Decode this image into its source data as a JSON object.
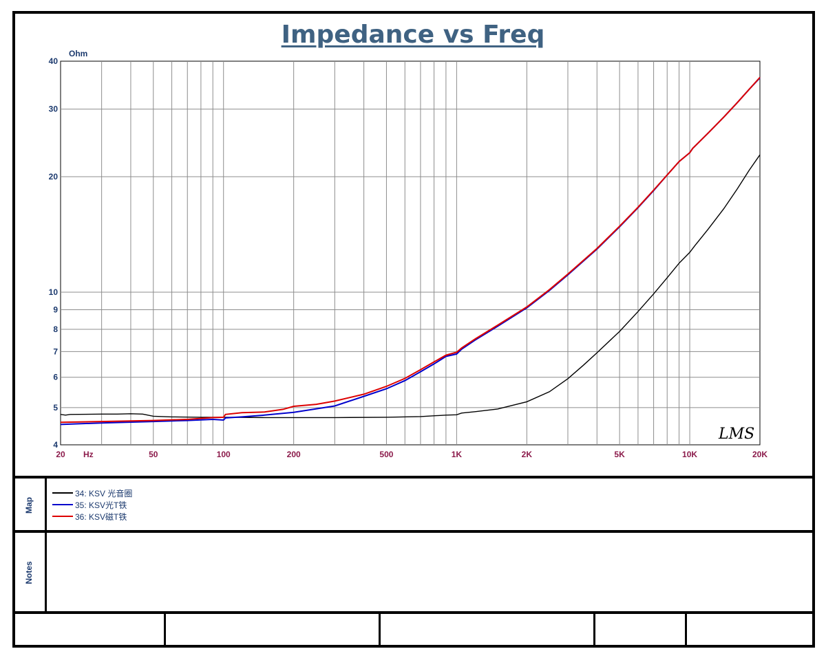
{
  "chart_data": {
    "type": "line",
    "title": "Impedance vs Freq",
    "ylabel": "Ohm",
    "xlabel": "Hz",
    "x_scale": "log",
    "y_scale": "log",
    "xlim": [
      20,
      20000
    ],
    "ylim": [
      4,
      40
    ],
    "grid": true,
    "x_ticks": [
      {
        "value": 20,
        "label": "20"
      },
      {
        "value": 50,
        "label": "50"
      },
      {
        "value": 100,
        "label": "100"
      },
      {
        "value": 200,
        "label": "200"
      },
      {
        "value": 500,
        "label": "500"
      },
      {
        "value": 1000,
        "label": "1K"
      },
      {
        "value": 2000,
        "label": "2K"
      },
      {
        "value": 5000,
        "label": "5K"
      },
      {
        "value": 10000,
        "label": "10K"
      },
      {
        "value": 20000,
        "label": "20K"
      }
    ],
    "y_ticks": [
      {
        "value": 4,
        "label": "4"
      },
      {
        "value": 5,
        "label": "5"
      },
      {
        "value": 6,
        "label": "6"
      },
      {
        "value": 7,
        "label": "7"
      },
      {
        "value": 8,
        "label": "8"
      },
      {
        "value": 9,
        "label": "9"
      },
      {
        "value": 10,
        "label": "10"
      },
      {
        "value": 20,
        "label": "20"
      },
      {
        "value": 30,
        "label": "30"
      },
      {
        "value": 40,
        "label": "40"
      }
    ],
    "x_unit_label": "Hz",
    "watermark": "LMS",
    "series": [
      {
        "name": "34: KSV 光音圈",
        "color": "#000000",
        "points": [
          [
            20,
            4.8
          ],
          [
            21,
            4.78
          ],
          [
            22,
            4.8
          ],
          [
            30,
            4.81
          ],
          [
            35,
            4.81
          ],
          [
            40,
            4.82
          ],
          [
            45,
            4.81
          ],
          [
            50,
            4.75
          ],
          [
            60,
            4.73
          ],
          [
            80,
            4.72
          ],
          [
            100,
            4.72
          ],
          [
            150,
            4.71
          ],
          [
            200,
            4.71
          ],
          [
            300,
            4.71
          ],
          [
            500,
            4.72
          ],
          [
            700,
            4.74
          ],
          [
            900,
            4.78
          ],
          [
            1000,
            4.79
          ],
          [
            1050,
            4.84
          ],
          [
            1200,
            4.88
          ],
          [
            1500,
            4.96
          ],
          [
            2000,
            5.18
          ],
          [
            2500,
            5.5
          ],
          [
            3000,
            5.95
          ],
          [
            3500,
            6.45
          ],
          [
            4000,
            6.95
          ],
          [
            5000,
            7.9
          ],
          [
            6000,
            8.9
          ],
          [
            7000,
            9.9
          ],
          [
            8000,
            10.9
          ],
          [
            9000,
            11.9
          ],
          [
            10000,
            12.7
          ],
          [
            10500,
            13.2
          ],
          [
            12000,
            14.6
          ],
          [
            14000,
            16.5
          ],
          [
            16000,
            18.6
          ],
          [
            18000,
            20.8
          ],
          [
            20000,
            22.8
          ]
        ]
      },
      {
        "name": "35: KSV光T铁",
        "color": "#0000cc",
        "points": [
          [
            20,
            4.52
          ],
          [
            30,
            4.56
          ],
          [
            50,
            4.6
          ],
          [
            70,
            4.63
          ],
          [
            90,
            4.66
          ],
          [
            100,
            4.64
          ],
          [
            102,
            4.7
          ],
          [
            120,
            4.73
          ],
          [
            150,
            4.78
          ],
          [
            200,
            4.86
          ],
          [
            300,
            5.05
          ],
          [
            400,
            5.35
          ],
          [
            500,
            5.6
          ],
          [
            600,
            5.88
          ],
          [
            700,
            6.2
          ],
          [
            800,
            6.5
          ],
          [
            900,
            6.8
          ],
          [
            1000,
            6.9
          ],
          [
            1050,
            7.1
          ],
          [
            1200,
            7.5
          ],
          [
            1500,
            8.15
          ],
          [
            2000,
            9.1
          ],
          [
            2500,
            10.1
          ],
          [
            3000,
            11.1
          ],
          [
            4000,
            12.95
          ],
          [
            5000,
            14.8
          ],
          [
            6000,
            16.6
          ],
          [
            7000,
            18.4
          ],
          [
            8000,
            20.2
          ],
          [
            9000,
            21.9
          ],
          [
            10000,
            23.1
          ],
          [
            10300,
            23.7
          ],
          [
            12000,
            26.0
          ],
          [
            14000,
            28.6
          ],
          [
            16000,
            31.2
          ],
          [
            18000,
            33.8
          ],
          [
            20000,
            36.2
          ]
        ]
      },
      {
        "name": "36: KSV磁T铁",
        "color": "#dd0000",
        "points": [
          [
            20,
            4.58
          ],
          [
            30,
            4.6
          ],
          [
            50,
            4.63
          ],
          [
            70,
            4.66
          ],
          [
            90,
            4.71
          ],
          [
            100,
            4.72
          ],
          [
            102,
            4.8
          ],
          [
            120,
            4.85
          ],
          [
            150,
            4.87
          ],
          [
            180,
            4.95
          ],
          [
            200,
            5.04
          ],
          [
            250,
            5.1
          ],
          [
            300,
            5.2
          ],
          [
            400,
            5.42
          ],
          [
            500,
            5.68
          ],
          [
            600,
            5.96
          ],
          [
            700,
            6.28
          ],
          [
            800,
            6.58
          ],
          [
            900,
            6.85
          ],
          [
            1000,
            6.97
          ],
          [
            1050,
            7.15
          ],
          [
            1200,
            7.55
          ],
          [
            1500,
            8.2
          ],
          [
            2000,
            9.15
          ],
          [
            2500,
            10.15
          ],
          [
            3000,
            11.15
          ],
          [
            4000,
            13.0
          ],
          [
            5000,
            14.85
          ],
          [
            6000,
            16.65
          ],
          [
            7000,
            18.45
          ],
          [
            8000,
            20.2
          ],
          [
            9000,
            21.9
          ],
          [
            10000,
            23.1
          ],
          [
            10300,
            23.7
          ],
          [
            12000,
            26.0
          ],
          [
            14000,
            28.6
          ],
          [
            16000,
            31.2
          ],
          [
            18000,
            33.8
          ],
          [
            20000,
            36.3
          ]
        ]
      }
    ]
  },
  "legend": {
    "section_label": "Map",
    "items": [
      {
        "label": "34: KSV 光音圈",
        "color": "#000000"
      },
      {
        "label": "35: KSV光T铁",
        "color": "#0000cc"
      },
      {
        "label": "36: KSV磁T铁",
        "color": "#dd0000"
      }
    ]
  },
  "notes": {
    "section_label": "Notes"
  }
}
